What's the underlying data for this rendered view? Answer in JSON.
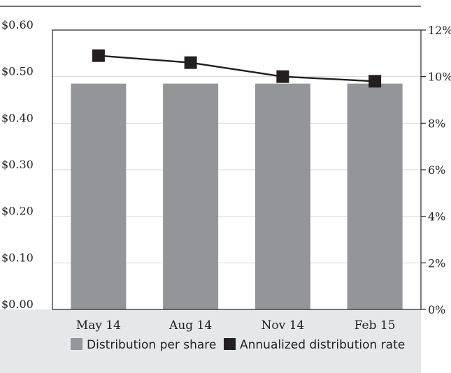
{
  "chart_data": {
    "type": "bar",
    "categories": [
      "May 14",
      "Aug 14",
      "Nov 14",
      "Feb 15"
    ],
    "series": [
      {
        "name": "Distribution per share",
        "type": "bar",
        "axis": "left",
        "values": [
          0.485,
          0.485,
          0.485,
          0.485
        ],
        "color": "#939598"
      },
      {
        "name": "Annualized distribution rate",
        "type": "line",
        "axis": "right",
        "values": [
          10.9,
          10.6,
          10.0,
          9.8
        ],
        "color": "#231f20"
      }
    ],
    "y_left": {
      "ylim": [
        0,
        0.6
      ],
      "ticks": [
        0,
        0.1,
        0.2,
        0.3,
        0.4,
        0.5,
        0.6
      ],
      "tick_labels": [
        "$0.00",
        "$0.10",
        "$0.20",
        "$0.30",
        "$0.40",
        "$0.50",
        "$0.60"
      ]
    },
    "y_right": {
      "ylim": [
        0,
        12
      ],
      "ticks": [
        0,
        2,
        4,
        6,
        8,
        10,
        12
      ],
      "tick_labels": [
        "0%",
        "2%",
        "4%",
        "6%",
        "8%",
        "10%",
        "12%"
      ]
    },
    "grid": true,
    "legend_position": "bottom",
    "footer_background": "#e6e7e8"
  }
}
